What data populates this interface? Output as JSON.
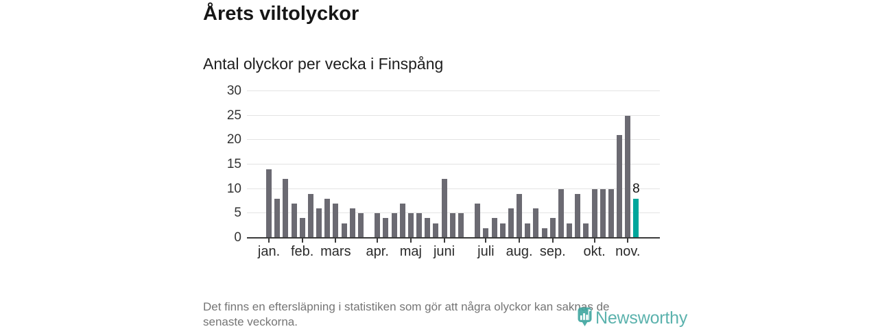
{
  "header": {
    "title": "Årets viltolyckor",
    "subtitle": "Antal olyckor per vecka i Finspång"
  },
  "chart_data": {
    "type": "bar",
    "title": "Årets viltolyckor",
    "subtitle": "Antal olyckor per vecka i Finspång",
    "x_unit": "vecka",
    "values": [
      14,
      8,
      12,
      7,
      4,
      9,
      6,
      8,
      7,
      3,
      6,
      5,
      0,
      5,
      4,
      5,
      7,
      5,
      5,
      4,
      3,
      12,
      5,
      5,
      0,
      7,
      2,
      4,
      3,
      6,
      9,
      3,
      6,
      2,
      4,
      10,
      3,
      9,
      3,
      10,
      10,
      10,
      21,
      25,
      8
    ],
    "month_ticks": [
      {
        "label": "jan.",
        "index": 0
      },
      {
        "label": "feb.",
        "index": 4
      },
      {
        "label": "mars",
        "index": 8
      },
      {
        "label": "apr.",
        "index": 13
      },
      {
        "label": "maj",
        "index": 17
      },
      {
        "label": "juni",
        "index": 21
      },
      {
        "label": "juli",
        "index": 26
      },
      {
        "label": "aug.",
        "index": 30
      },
      {
        "label": "sep.",
        "index": 34
      },
      {
        "label": "okt.",
        "index": 39
      },
      {
        "label": "nov.",
        "index": 43
      }
    ],
    "yticks": [
      0,
      5,
      10,
      15,
      20,
      25,
      30
    ],
    "ylim": [
      0,
      30
    ],
    "grid": "horizontal",
    "legend": "none",
    "highlight": {
      "index": 44,
      "label": "8"
    },
    "colors": {
      "bar": "#6B6A72",
      "highlight": "#00A69B",
      "grid": "#E3E3E3",
      "axis": "#3A3A3A"
    }
  },
  "footer": {
    "lines": [
      "Det finns en eftersläpning i statistiken som gör att några olyckor kan saknas de",
      "senaste veckorna."
    ]
  },
  "logo": {
    "text": "Newsworthy",
    "icon": "newsworthy-bubble-chart-icon",
    "color": "#3EA59F"
  }
}
